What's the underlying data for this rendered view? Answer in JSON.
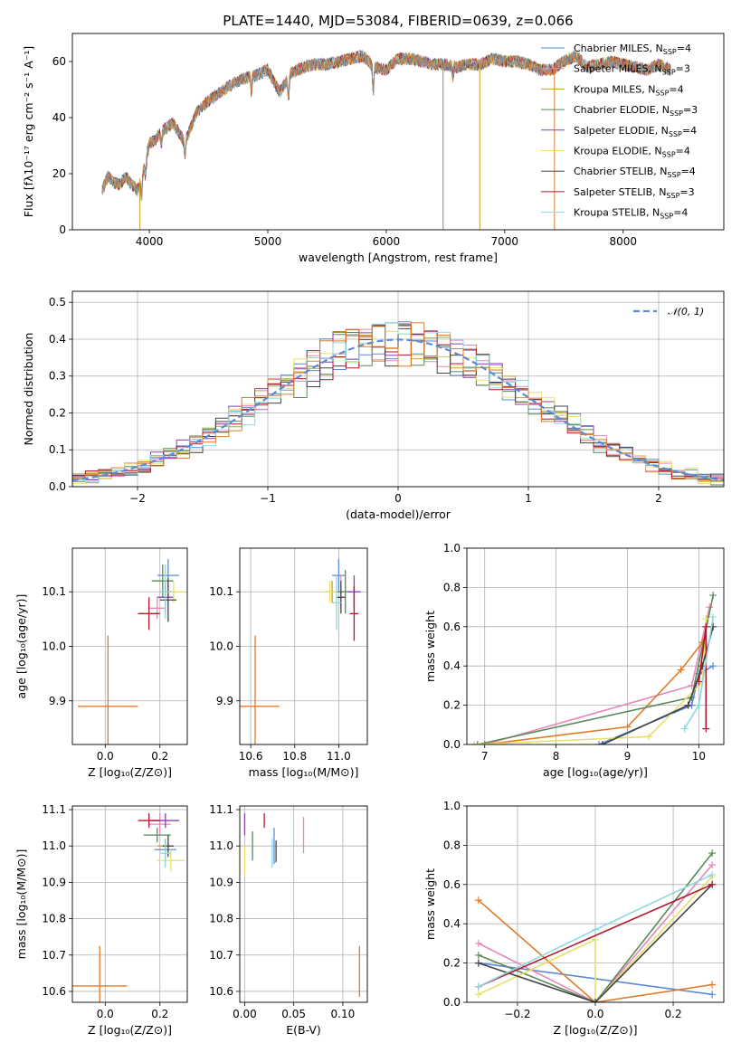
{
  "chart_data": [
    {
      "id": "spectrum",
      "type": "line",
      "title": "PLATE=1440, MJD=53084, FIBERID=0639, z=0.066",
      "xlabel": "wavelength [Angstrom, rest frame]",
      "ylabel": "Flux [fλ10⁻¹⁷ erg cm⁻² s⁻¹ A⁻¹]",
      "xlim": [
        3350,
        8850
      ],
      "ylim": [
        0,
        70
      ],
      "xticks": [
        4000,
        5000,
        6000,
        7000,
        8000
      ],
      "yticks": [
        0,
        20,
        40,
        60
      ],
      "grid": false,
      "legend_position": "top-right",
      "anchors": {
        "x": [
          3600,
          3650,
          3700,
          3750,
          3800,
          3850,
          3900,
          3950,
          4000,
          4050,
          4100,
          4200,
          4300,
          4400,
          4500,
          4600,
          4700,
          4800,
          4900,
          5000,
          5100,
          5200,
          5300,
          5400,
          5500,
          5600,
          5700,
          5800,
          5900,
          6000,
          6100,
          6200,
          6300,
          6400,
          6500,
          6600,
          6700,
          6800,
          6900,
          7000,
          7100,
          7200,
          7300,
          7400,
          7500,
          7600,
          7700,
          7800,
          7900,
          8000,
          8100,
          8200,
          8300,
          8400
        ],
        "y": [
          14,
          19,
          17,
          16,
          19,
          16,
          14,
          21,
          31,
          32,
          35,
          38,
          31,
          42,
          46,
          49,
          52,
          54,
          55,
          57,
          49,
          56,
          58,
          59,
          59,
          60,
          61,
          62,
          58,
          57,
          61,
          61,
          60,
          59,
          59,
          58,
          59,
          59,
          61,
          60,
          60,
          59,
          57,
          57,
          60,
          62,
          58,
          59,
          60,
          59,
          58,
          57,
          59,
          57
        ]
      },
      "series": [
        {
          "label": "Chabrier MILES, N",
          "sub": "SSP",
          "value": "=4",
          "color": "#5b8ad6"
        },
        {
          "label": "Salpeter MILES, N",
          "sub": "SSP",
          "value": "=3",
          "color": "#e887b8"
        },
        {
          "label": "Kroupa MILES, N",
          "sub": "SSP",
          "value": "=4",
          "color": "#c6a02a"
        },
        {
          "label": "Chabrier ELODIE, N",
          "sub": "SSP",
          "value": "=3",
          "color": "#5a8a5a"
        },
        {
          "label": "Salpeter ELODIE, N",
          "sub": "SSP",
          "value": "=4",
          "color": "#8e3cb2"
        },
        {
          "label": "Kroupa ELODIE, N",
          "sub": "SSP",
          "value": "=4",
          "color": "#e8e06a"
        },
        {
          "label": "Chabrier STELIB, N",
          "sub": "SSP",
          "value": "=4",
          "color": "#444444"
        },
        {
          "label": "Salpeter STELIB, N",
          "sub": "SSP",
          "value": "=3",
          "color": "#b2182b"
        },
        {
          "label": "Kroupa STELIB, N",
          "sub": "SSP",
          "value": "=4",
          "color": "#8fd8dc"
        }
      ]
    },
    {
      "id": "residuals",
      "type": "bar",
      "xlabel": "(data-model)/error",
      "ylabel": "Normed distribution",
      "xlim": [
        -2.5,
        2.5
      ],
      "ylim": [
        0,
        0.53
      ],
      "xticks": [
        -2,
        -1,
        0,
        1,
        2
      ],
      "yticks": [
        0.0,
        0.1,
        0.2,
        0.3,
        0.4,
        0.5
      ],
      "grid": true,
      "legend_position": "top-right",
      "gaussian_label": "𝒩(0, 1)",
      "gaussian_color": "#5b8ad6"
    },
    {
      "id": "age-Z",
      "type": "scatter",
      "xlabel": "Z [log₁₀(Z/Z⊙)]",
      "ylabel": "age  [log₁₀(age/yr)]",
      "xlim": [
        -0.12,
        0.3
      ],
      "ylim": [
        9.82,
        10.18
      ],
      "xticks": [
        0.0,
        0.2
      ],
      "yticks": [
        9.9,
        10.0,
        10.1
      ],
      "grid": true,
      "points": [
        {
          "x": 0.23,
          "y": 10.13,
          "xerr": 0.04,
          "yerr": 0.03,
          "color": "#5b8ad6"
        },
        {
          "x": 0.19,
          "y": 10.07,
          "xerr": 0.03,
          "yerr": 0.02,
          "color": "#e887b8"
        },
        {
          "x": 0.23,
          "y": 10.1,
          "xerr": 0.03,
          "yerr": 0.02,
          "color": "#c6a02a"
        },
        {
          "x": 0.21,
          "y": 10.12,
          "xerr": 0.04,
          "yerr": 0.03,
          "color": "#5a8a5a"
        },
        {
          "x": 0.22,
          "y": 10.09,
          "xerr": 0.03,
          "yerr": 0.03,
          "color": "#8e3cb2"
        },
        {
          "x": 0.25,
          "y": 10.1,
          "xerr": 0.04,
          "yerr": 0.02,
          "color": "#e8e06a"
        },
        {
          "x": 0.23,
          "y": 10.085,
          "xerr": 0.03,
          "yerr": 0.04,
          "color": "#444444"
        },
        {
          "x": 0.16,
          "y": 10.06,
          "xerr": 0.04,
          "yerr": 0.03,
          "color": "#b2182b"
        },
        {
          "x": 0.22,
          "y": 10.1,
          "xerr": 0.02,
          "yerr": 0.05,
          "color": "#8fd8dc"
        },
        {
          "x": 0.01,
          "y": 9.89,
          "xerr": 0.11,
          "yerr": 0.13,
          "color": "#e07b28"
        }
      ]
    },
    {
      "id": "age-mass",
      "type": "scatter",
      "xlabel": "mass [log₁₀(M/M⊙)]",
      "ylabel": "",
      "xlim": [
        10.55,
        11.13
      ],
      "ylim": [
        9.82,
        10.18
      ],
      "xticks": [
        10.6,
        10.8,
        11.0
      ],
      "yticks": [
        9.9,
        10.0,
        10.1
      ],
      "grid": true,
      "points": [
        {
          "x": 11.0,
          "y": 10.13,
          "xerr": 0.03,
          "yerr": 0.03,
          "color": "#5b8ad6"
        },
        {
          "x": 11.01,
          "y": 10.1,
          "xerr": 0.03,
          "yerr": 0.03,
          "color": "#e887b8"
        },
        {
          "x": 10.97,
          "y": 10.1,
          "xerr": 0.03,
          "yerr": 0.02,
          "color": "#c6a02a"
        },
        {
          "x": 11.03,
          "y": 10.1,
          "xerr": 0.03,
          "yerr": 0.04,
          "color": "#5a8a5a"
        },
        {
          "x": 11.07,
          "y": 10.1,
          "xerr": 0.03,
          "yerr": 0.03,
          "color": "#8e3cb2"
        },
        {
          "x": 10.96,
          "y": 10.1,
          "xerr": 0.03,
          "yerr": 0.02,
          "color": "#e8e06a"
        },
        {
          "x": 11.01,
          "y": 10.09,
          "xerr": 0.02,
          "yerr": 0.03,
          "color": "#444444"
        },
        {
          "x": 11.07,
          "y": 10.06,
          "xerr": 0.02,
          "yerr": 0.05,
          "color": "#b2182b"
        },
        {
          "x": 10.99,
          "y": 10.08,
          "xerr": 0.02,
          "yerr": 0.05,
          "color": "#8fd8dc"
        },
        {
          "x": 10.62,
          "y": 9.89,
          "xerr": 0.11,
          "yerr": 0.13,
          "color": "#e07b28"
        }
      ]
    },
    {
      "id": "weight-age",
      "type": "line",
      "xlabel": "age  [log₁₀(age/yr)]",
      "ylabel": "mass weight",
      "xlim": [
        6.75,
        10.35
      ],
      "ylim": [
        0,
        1.0
      ],
      "xticks": [
        7,
        8,
        9,
        10
      ],
      "yticks": [
        0.0,
        0.2,
        0.4,
        0.6,
        0.8,
        1.0
      ],
      "grid": true,
      "series": [
        {
          "color": "#5b8ad6",
          "x": [
            8.6,
            9.9,
            10.0,
            10.2
          ],
          "y": [
            0.0,
            0.2,
            0.36,
            0.4
          ]
        },
        {
          "color": "#e887b8",
          "x": [
            7.0,
            9.9,
            10.15
          ],
          "y": [
            0.0,
            0.3,
            0.7
          ]
        },
        {
          "color": "#e07b28",
          "x": [
            7.0,
            9.0,
            9.75,
            10.05
          ],
          "y": [
            0.0,
            0.09,
            0.38,
            0.52
          ]
        },
        {
          "color": "#5a8a5a",
          "x": [
            6.9,
            9.9,
            10.2
          ],
          "y": [
            0.0,
            0.24,
            0.76
          ]
        },
        {
          "color": "#e8e06a",
          "x": [
            6.85,
            9.3,
            10.05,
            10.1
          ],
          "y": [
            0.0,
            0.04,
            0.32,
            0.64
          ]
        },
        {
          "color": "#444444",
          "x": [
            8.65,
            9.85,
            10.05,
            10.2
          ],
          "y": [
            0.0,
            0.2,
            0.4,
            0.6
          ]
        },
        {
          "color": "#b2182b",
          "x": [
            10.0,
            10.1,
            10.1
          ],
          "y": [
            0.32,
            0.6,
            0.08
          ]
        },
        {
          "color": "#8fd8dc",
          "x": [
            9.8,
            10.0,
            10.2
          ],
          "y": [
            0.08,
            0.2,
            0.65
          ]
        }
      ]
    },
    {
      "id": "mass-Z",
      "type": "scatter",
      "xlabel": "Z [log₁₀(Z/Z⊙)]",
      "ylabel": "mass [log₁₀(M/M⊙)]",
      "xlim": [
        -0.12,
        0.3
      ],
      "ylim": [
        10.57,
        11.11
      ],
      "xticks": [
        0.0,
        0.2
      ],
      "yticks": [
        10.6,
        10.7,
        10.8,
        10.9,
        11.0,
        11.1
      ],
      "grid": true,
      "points": [
        {
          "x": 0.22,
          "y": 10.99,
          "xerr": 0.04,
          "yerr": 0.03,
          "color": "#5b8ad6"
        },
        {
          "x": 0.2,
          "y": 11.06,
          "xerr": 0.04,
          "yerr": 0.03,
          "color": "#e887b8"
        },
        {
          "x": 0.22,
          "y": 11.0,
          "xerr": 0.03,
          "yerr": 0.02,
          "color": "#c6a02a"
        },
        {
          "x": 0.19,
          "y": 11.03,
          "xerr": 0.05,
          "yerr": 0.02,
          "color": "#5a8a5a"
        },
        {
          "x": 0.22,
          "y": 11.07,
          "xerr": 0.05,
          "yerr": 0.02,
          "color": "#8e3cb2"
        },
        {
          "x": 0.24,
          "y": 10.96,
          "xerr": 0.05,
          "yerr": 0.03,
          "color": "#e8e06a"
        },
        {
          "x": 0.23,
          "y": 11.0,
          "xerr": 0.02,
          "yerr": 0.03,
          "color": "#444444"
        },
        {
          "x": 0.16,
          "y": 11.07,
          "xerr": 0.04,
          "yerr": 0.02,
          "color": "#b2182b"
        },
        {
          "x": 0.22,
          "y": 10.98,
          "xerr": 0.02,
          "yerr": 0.04,
          "color": "#8fd8dc"
        },
        {
          "x": -0.02,
          "y": 10.615,
          "xerr": 0.1,
          "yerr": 0.11,
          "color": "#e07b28"
        }
      ]
    },
    {
      "id": "mass-EBV",
      "type": "scatter",
      "xlabel": "E(B-V)",
      "ylabel": "",
      "xlim": [
        -0.005,
        0.125
      ],
      "ylim": [
        10.57,
        11.11
      ],
      "xticks": [
        0.0,
        0.05,
        0.1
      ],
      "yticks": [
        10.6,
        10.7,
        10.8,
        10.9,
        11.0,
        11.1
      ],
      "grid": true,
      "points": [
        {
          "x": 0.03,
          "y": 11.0,
          "xerr": 0,
          "yerr": 0.05,
          "color": "#5b8ad6"
        },
        {
          "x": 0.06,
          "y": 11.03,
          "xerr": 0,
          "yerr": 0.05,
          "color": "#e887b8"
        },
        {
          "x": 0.0,
          "y": 10.96,
          "xerr": 0,
          "yerr": 0.04,
          "color": "#e8e06a"
        },
        {
          "x": 0.008,
          "y": 11.0,
          "xerr": 0,
          "yerr": 0.04,
          "color": "#5a8a5a"
        },
        {
          "x": 0.0,
          "y": 11.06,
          "xerr": 0,
          "yerr": 0.03,
          "color": "#8e3cb2"
        },
        {
          "x": 0.032,
          "y": 10.985,
          "xerr": 0,
          "yerr": 0.03,
          "color": "#444444"
        },
        {
          "x": 0.02,
          "y": 11.07,
          "xerr": 0,
          "yerr": 0.02,
          "color": "#b2182b"
        },
        {
          "x": 0.028,
          "y": 10.98,
          "xerr": 0,
          "yerr": 0.04,
          "color": "#8fd8dc"
        },
        {
          "x": 0.117,
          "y": 10.655,
          "xerr": 0,
          "yerr": 0.07,
          "color": "#e07b28"
        }
      ]
    },
    {
      "id": "weight-Z",
      "type": "line",
      "xlabel": "Z [log₁₀(Z/Z⊙)]",
      "ylabel": "mass weight",
      "xlim": [
        -0.33,
        0.33
      ],
      "ylim": [
        0,
        1.0
      ],
      "xticks": [
        -0.2,
        0.0,
        0.2
      ],
      "yticks": [
        0.0,
        0.2,
        0.4,
        0.6,
        0.8,
        1.0
      ],
      "grid": true,
      "series": [
        {
          "color": "#5b8ad6",
          "x": [
            -0.3,
            0.3
          ],
          "y": [
            0.2,
            0.04
          ]
        },
        {
          "color": "#e887b8",
          "x": [
            -0.3,
            0.0,
            0.3
          ],
          "y": [
            0.3,
            0.0,
            0.7
          ]
        },
        {
          "color": "#e07b28",
          "x": [
            -0.3,
            0.0,
            0.3
          ],
          "y": [
            0.52,
            0.0,
            0.09
          ]
        },
        {
          "color": "#5a8a5a",
          "x": [
            -0.3,
            0.0,
            0.3
          ],
          "y": [
            0.24,
            0.0,
            0.76
          ]
        },
        {
          "color": "#e8e06a",
          "x": [
            -0.3,
            0.0,
            0.0,
            0.3
          ],
          "y": [
            0.04,
            0.32,
            0.0,
            0.64
          ]
        },
        {
          "color": "#444444",
          "x": [
            -0.3,
            0.0,
            0.3
          ],
          "y": [
            0.2,
            0.0,
            0.6
          ]
        },
        {
          "color": "#b2182b",
          "x": [
            -0.3,
            0.3
          ],
          "y": [
            0.08,
            0.6
          ]
        },
        {
          "color": "#8fd8dc",
          "x": [
            -0.3,
            0.0,
            0.3
          ],
          "y": [
            0.08,
            0.37,
            0.65
          ]
        }
      ]
    }
  ]
}
